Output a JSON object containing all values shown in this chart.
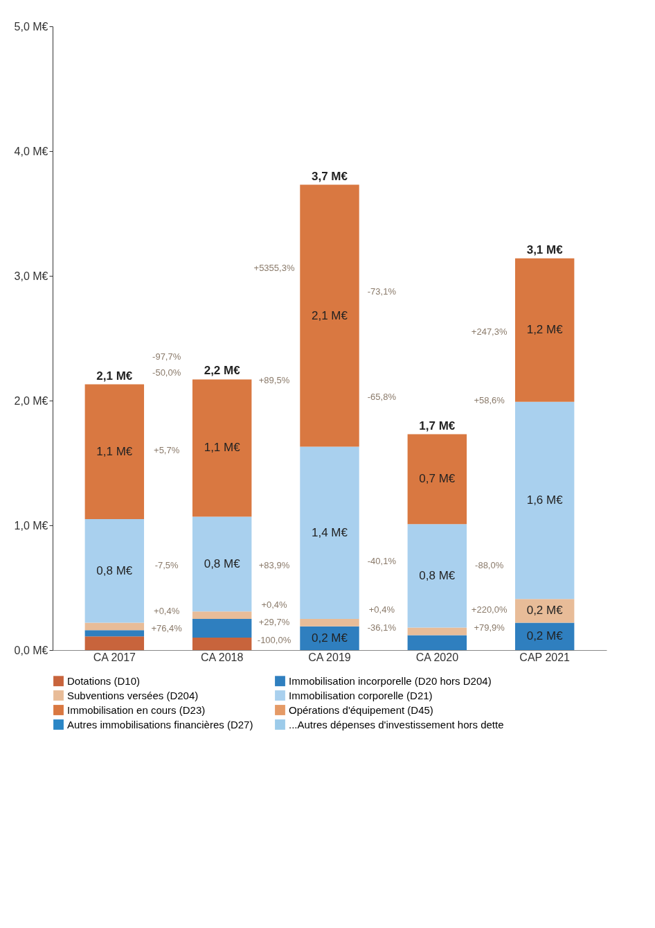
{
  "chart_data": {
    "type": "bar",
    "stacked": true,
    "categories": [
      "CA 2017",
      "CA 2018",
      "CA 2019",
      "CA 2020",
      "CAP 2021"
    ],
    "series": [
      {
        "name": "Dotations (D10)",
        "color": "#c8643c",
        "values": [
          0.11,
          0.1,
          null,
          null,
          null
        ]
      },
      {
        "name": "Immobilisation incorporelle (D20 hors D204)",
        "color": "#2f7fbf",
        "values": [
          0.05,
          0.15,
          0.19,
          0.12,
          0.22
        ],
        "value_labels": [
          null,
          null,
          "0,2 M€",
          null,
          "0,2 M€"
        ]
      },
      {
        "name": "Subventions versées (D204)",
        "color": "#e8bc98",
        "values": [
          0.06,
          0.06,
          0.06,
          0.06,
          0.19
        ],
        "value_labels": [
          null,
          null,
          null,
          null,
          "0,2 M€"
        ]
      },
      {
        "name": "Immobilisation corporelle (D21)",
        "color": "#a9d0ee",
        "values": [
          0.83,
          0.76,
          1.38,
          0.83,
          1.58
        ],
        "value_labels": [
          "0,8 M€",
          "0,8 M€",
          "1,4 M€",
          "0,8 M€",
          "1,6 M€"
        ]
      },
      {
        "name": "Immobilisation en cours (D23)",
        "color": "#d97841",
        "values": [
          1.08,
          1.1,
          2.1,
          0.72,
          1.15
        ],
        "value_labels": [
          "1,1 M€",
          "1,1 M€",
          "2,1 M€",
          "0,7 M€",
          "1,2 M€"
        ]
      },
      {
        "name": "Opérations d'équipement (D45)",
        "color": "#e59a66",
        "values": [
          null,
          null,
          null,
          null,
          null
        ]
      },
      {
        "name": "Autres immobilisations financières (D27)",
        "color": "#2a86c6",
        "values": [
          null,
          null,
          null,
          null,
          null
        ]
      },
      {
        "name": "...Autres dépenses d'investissement hors dette",
        "color": "#9ccbea",
        "values": [
          null,
          null,
          null,
          null,
          null
        ]
      }
    ],
    "totals": [
      "2,1 M€",
      "2,2 M€",
      "3,7 M€",
      "1,7 M€",
      "3,1 M€"
    ],
    "ylim": [
      0,
      5
    ],
    "yticks": [
      {
        "value": 0,
        "label": "0,0 M€"
      },
      {
        "value": 1,
        "label": "1,0 M€"
      },
      {
        "value": 2,
        "label": "2,0 M€"
      },
      {
        "value": 3,
        "label": "3,0 M€"
      },
      {
        "value": 4,
        "label": "4,0 M€"
      },
      {
        "value": 5,
        "label": "5,0 M€"
      }
    ],
    "grid": false,
    "legend": "bottom",
    "annotations": [
      "-97,7%",
      "-50,0%",
      "+5,7%",
      "-7,5%",
      "+0,4%",
      "+76,4%",
      "+5355,3%",
      "+89,5%",
      "+83,9%",
      "+0,4%",
      "+29,7%",
      "-100,0%",
      "-73,1%",
      "-65,8%",
      "-40,1%",
      "+0,4%",
      "-36,1%",
      "+247,3%",
      "+58,6%",
      "-88,0%",
      "+220,0%",
      "+79,9%"
    ]
  }
}
